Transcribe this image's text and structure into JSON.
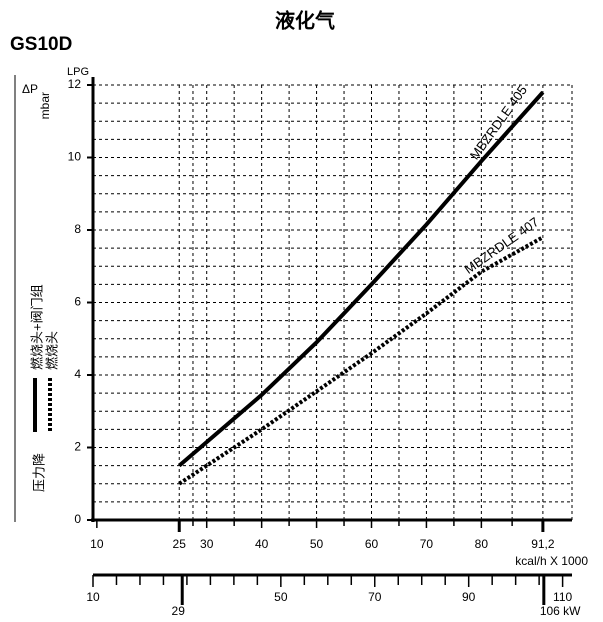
{
  "chart_data": {
    "type": "line",
    "title": "液化气",
    "subtitle": "GS10D",
    "y_unit": "LPG",
    "ylabel_symbol": "ΔP",
    "ylabel_unit": "mbar",
    "ylabel": "压力降",
    "xlabel": "kcal/h X 1000",
    "x": [
      25,
      40,
      50,
      60,
      70,
      80,
      91.2
    ],
    "series": [
      {
        "name": "MBZRDLE 405",
        "legend_label": "燃烧头+阀门组",
        "color": "#000000",
        "dash": "solid",
        "values": [
          1.5,
          3.45,
          4.9,
          6.5,
          8.15,
          9.9,
          11.8
        ]
      },
      {
        "name": "MBZRDLE 407",
        "legend_label": "燃烧头",
        "color": "#000000",
        "dash": "dotted",
        "values": [
          1.0,
          2.5,
          3.55,
          4.6,
          5.7,
          6.85,
          7.8
        ]
      }
    ],
    "xlim": [
      9.3,
      96.5
    ],
    "xticks": [
      10,
      25,
      30,
      40,
      50,
      60,
      70,
      80,
      {
        "value": 91.2,
        "label": "91,2"
      }
    ],
    "ylim": [
      0,
      12
    ],
    "yticks": [
      0,
      2,
      4,
      6,
      8,
      10,
      12
    ],
    "x2lim": [
      10,
      112
    ],
    "x2ticks": [
      10,
      29,
      50,
      70,
      90,
      {
        "value": 106,
        "label": "106 kW"
      },
      110
    ],
    "grid": true
  }
}
